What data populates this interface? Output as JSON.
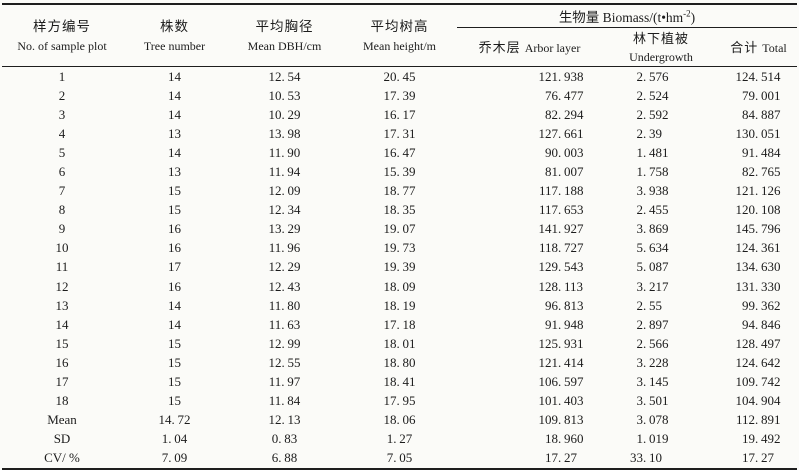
{
  "page": {
    "background": "#fbfbf8",
    "text_color": "#1c1c1c"
  },
  "table": {
    "columns": [
      {
        "zh": "样方编号",
        "en": "No. of sample plot"
      },
      {
        "zh": "株数",
        "en": "Tree number"
      },
      {
        "zh": "平均胸径",
        "en": "Mean DBH/cm"
      },
      {
        "zh": "平均树高",
        "en": "Mean height/m"
      },
      {
        "zh": "乔木层",
        "en": "Arbor layer"
      },
      {
        "zh": "林下植被",
        "en": "Undergrowth"
      },
      {
        "zh": "合计",
        "en": "Total"
      }
    ],
    "biomass_group": {
      "label": "生物量 Biomass/(t•hm",
      "sup": "-2",
      "close": ")"
    },
    "rows": [
      {
        "label": "1",
        "values": [
          "14",
          "12.54",
          "20.45",
          "121.938",
          "2.576",
          "124.514"
        ]
      },
      {
        "label": "2",
        "values": [
          "14",
          "10.53",
          "17.39",
          "76.477",
          "2.524",
          "79.001"
        ]
      },
      {
        "label": "3",
        "values": [
          "14",
          "10.29",
          "16.17",
          "82.294",
          "2.592",
          "84.887"
        ]
      },
      {
        "label": "4",
        "values": [
          "13",
          "13.98",
          "17.31",
          "127.661",
          "2.39",
          "130.051"
        ]
      },
      {
        "label": "5",
        "values": [
          "14",
          "11.90",
          "16.47",
          "90.003",
          "1.481",
          "91.484"
        ]
      },
      {
        "label": "6",
        "values": [
          "13",
          "11.94",
          "15.39",
          "81.007",
          "1.758",
          "82.765"
        ]
      },
      {
        "label": "7",
        "values": [
          "15",
          "12.09",
          "18.77",
          "117.188",
          "3.938",
          "121.126"
        ]
      },
      {
        "label": "8",
        "values": [
          "15",
          "12.34",
          "18.35",
          "117.653",
          "2.455",
          "120.108"
        ]
      },
      {
        "label": "9",
        "values": [
          "16",
          "13.29",
          "19.07",
          "141.927",
          "3.869",
          "145.796"
        ]
      },
      {
        "label": "10",
        "values": [
          "16",
          "11.96",
          "19.73",
          "118.727",
          "5.634",
          "124.361"
        ]
      },
      {
        "label": "11",
        "values": [
          "17",
          "12.29",
          "19.39",
          "129.543",
          "5.087",
          "134.630"
        ]
      },
      {
        "label": "12",
        "values": [
          "16",
          "12.43",
          "18.09",
          "128.113",
          "3.217",
          "131.330"
        ]
      },
      {
        "label": "13",
        "values": [
          "14",
          "11.80",
          "18.19",
          "96.813",
          "2.55",
          "99.362"
        ]
      },
      {
        "label": "14",
        "values": [
          "14",
          "11.63",
          "17.18",
          "91.948",
          "2.897",
          "94.846"
        ]
      },
      {
        "label": "15",
        "values": [
          "15",
          "12.99",
          "18.01",
          "125.931",
          "2.566",
          "128.497"
        ]
      },
      {
        "label": "16",
        "values": [
          "15",
          "12.55",
          "18.80",
          "121.414",
          "3.228",
          "124.642"
        ]
      },
      {
        "label": "17",
        "values": [
          "15",
          "11.97",
          "18.41",
          "106.597",
          "3.145",
          "109.742"
        ]
      },
      {
        "label": "18",
        "values": [
          "15",
          "11.84",
          "17.95",
          "101.403",
          "3.501",
          "104.904"
        ]
      },
      {
        "label": "Mean",
        "values": [
          "14.72",
          "12.13",
          "18.06",
          "109.813",
          "3.078",
          "112.891"
        ]
      },
      {
        "label": "SD",
        "values": [
          "1.04",
          "0.83",
          "1.27",
          "18.960",
          "1.019",
          "19.492"
        ]
      },
      {
        "label": "CV/ %",
        "values": [
          "7.09",
          "6.88",
          "7.05",
          "17.27",
          "33.10",
          "17.27"
        ]
      }
    ]
  }
}
